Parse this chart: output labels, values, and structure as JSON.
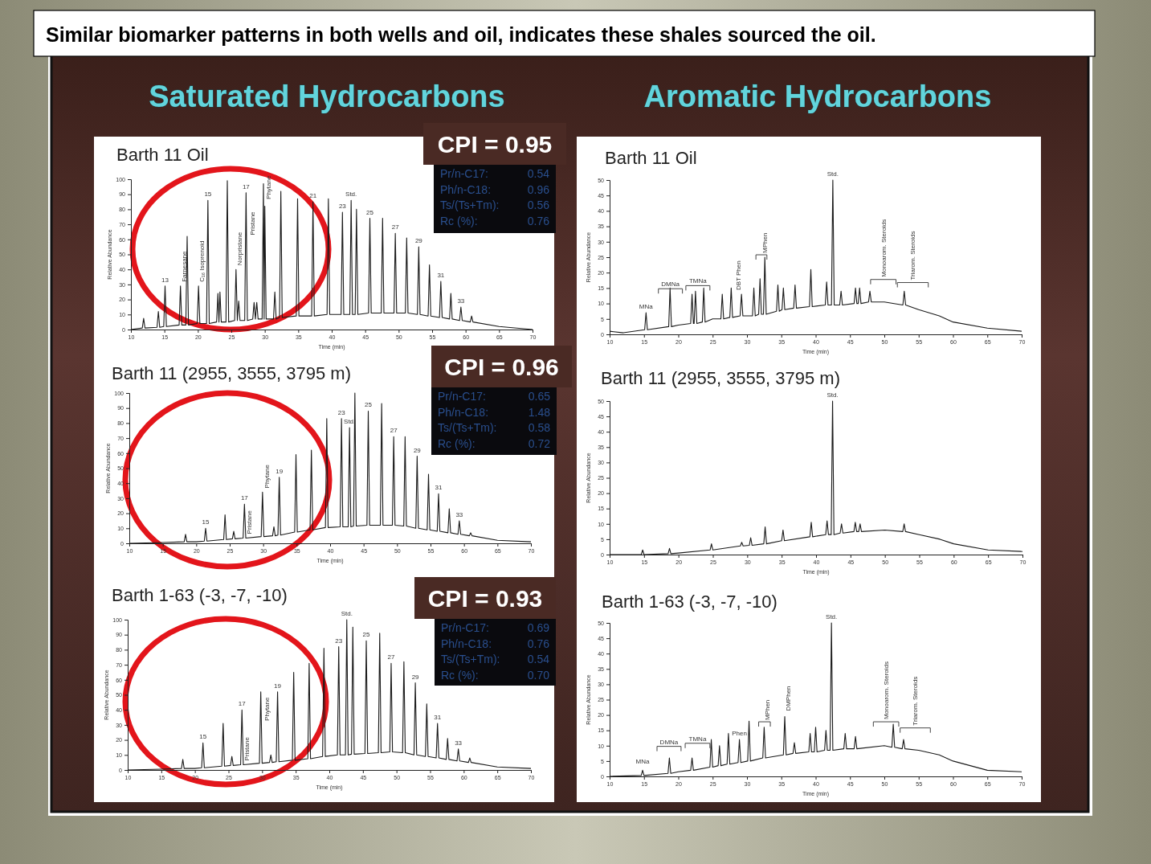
{
  "chart_data": [
    {
      "type": "other",
      "title": "Similar biomarker patterns in both wells and oil, indicates these shales sourced the oil.",
      "annotations": [
        "Saturated Hydrocarbons",
        "Aromatic Hydrocarbons"
      ]
    },
    {
      "type": "line",
      "title": "Barth 11 Oil",
      "xlabel": "Time (min)",
      "ylabel": "Relative Abundance",
      "xlim": [
        10,
        70
      ],
      "ylim": [
        0,
        100
      ],
      "xticks": [
        10,
        15,
        20,
        25,
        30,
        35,
        40,
        45,
        50,
        55,
        60,
        65,
        70
      ],
      "yticks": [
        0,
        10,
        20,
        30,
        40,
        50,
        60,
        70,
        80,
        90,
        100
      ],
      "series": [
        {
          "color": "#1a1a1a",
          "x": [
            10,
            11.7,
            11.9,
            12.1,
            13.9,
            14.1,
            14.3,
            14.9,
            15.1,
            15.3,
            17.2,
            17.4,
            17.6,
            18.2,
            18.4,
            18.6,
            19.9,
            20.1,
            20.3,
            21.3,
            21.5,
            21.7,
            22.8,
            23.0,
            23.15,
            23.3,
            23.5,
            24.2,
            24.4,
            24.6,
            25.5,
            25.7,
            25.9,
            26.1,
            26.3,
            27.0,
            27.2,
            27.4,
            28.2,
            28.4,
            28.6,
            28.8,
            29.0,
            29.6,
            29.8,
            29.9,
            30.0,
            30.2,
            31.3,
            31.5,
            31.7,
            32.2,
            32.4,
            32.6,
            34.7,
            34.9,
            35.1,
            37.0,
            37.2,
            37.4,
            39.3,
            39.5,
            39.7,
            41.4,
            41.6,
            41.8,
            42.7,
            42.9,
            43.1,
            43.5,
            43.7,
            43.9,
            45.5,
            45.7,
            45.9,
            47.4,
            47.6,
            47.8,
            49.3,
            49.5,
            49.7,
            51.0,
            51.2,
            51.4,
            52.8,
            53.0,
            53.2,
            54.4,
            54.6,
            54.8,
            56.1,
            56.3,
            56.5,
            57.6,
            57.8,
            58.0,
            59.1,
            59.3,
            59.5,
            60.7,
            60.9,
            61.1,
            65,
            70
          ],
          "values": [
            0,
            1,
            7.5,
            1,
            1.5,
            12,
            1.5,
            2,
            29,
            2,
            3,
            29,
            3,
            3,
            62,
            3,
            4,
            29,
            4,
            4,
            86,
            4,
            5,
            24,
            5,
            25,
            5,
            5,
            99,
            5,
            6,
            40,
            6,
            19,
            6,
            6,
            91,
            6,
            7,
            18,
            7,
            18,
            7,
            7,
            97,
            7,
            82,
            7,
            7,
            25,
            7,
            8,
            92,
            8,
            9,
            87,
            9,
            9,
            85,
            9,
            10,
            87,
            10,
            10,
            78,
            10,
            10,
            86,
            10,
            10,
            80,
            10,
            11,
            74,
            11,
            11,
            74,
            11,
            11,
            64,
            11,
            11,
            61,
            11,
            10,
            55,
            10,
            9,
            43,
            9,
            8,
            32,
            8,
            7,
            24,
            7,
            6,
            15,
            6,
            5,
            9,
            5,
            2,
            0
          ]
        }
      ],
      "annotations": [
        {
          "text": "13",
          "x": 15.1,
          "y": 29
        },
        {
          "text": "Farnesane",
          "x": 17.4,
          "y": 29
        },
        {
          "text": "C₁₆ Isoprenoid",
          "x": 20.1,
          "y": 29
        },
        {
          "text": "15",
          "x": 21.5,
          "y": 86
        },
        {
          "text": "Norpristane",
          "x": 25.7,
          "y": 40
        },
        {
          "text": "17",
          "x": 27.2,
          "y": 91
        },
        {
          "text": "Pristane",
          "x": 27.6,
          "y": 60
        },
        {
          "text": "Phytane",
          "x": 30.0,
          "y": 84
        },
        {
          "text": "21",
          "x": 37.2,
          "y": 85
        },
        {
          "text": "23",
          "x": 41.6,
          "y": 78
        },
        {
          "text": "Std.",
          "x": 42.9,
          "y": 86
        },
        {
          "text": "25",
          "x": 45.7,
          "y": 74
        },
        {
          "text": "27",
          "x": 49.5,
          "y": 64
        },
        {
          "text": "29",
          "x": 53.0,
          "y": 55
        },
        {
          "text": "31",
          "x": 56.3,
          "y": 32
        },
        {
          "text": "33",
          "x": 59.3,
          "y": 15
        },
        "CPI = 0.95",
        "Pr/n-C17: 0.54",
        "Ph/n-C18: 0.96",
        "Ts/(Ts+Tm): 0.56",
        "Rc (%): 0.76"
      ]
    },
    {
      "type": "line",
      "title": "Barth 11 Oil",
      "xlabel": "Time (min)",
      "ylabel": "Relative Abundance",
      "xlim": [
        10,
        70
      ],
      "ylim": [
        0,
        50
      ],
      "xticks": [
        10,
        15,
        20,
        25,
        30,
        35,
        40,
        45,
        50,
        55,
        60,
        65,
        70
      ],
      "yticks": [
        0,
        5,
        10,
        15,
        20,
        25,
        30,
        35,
        40,
        45,
        50
      ],
      "series": [
        {
          "color": "#1a1a1a",
          "x": [
            10,
            12,
            15.1,
            15.3,
            15.5,
            18.6,
            18.8,
            19.0,
            20,
            21.8,
            22.0,
            22.2,
            22.3,
            22.5,
            22.7,
            23.5,
            23.7,
            23.9,
            25,
            26.2,
            26.4,
            26.6,
            27.5,
            27.7,
            27.9,
            29.0,
            29.2,
            29.4,
            30.8,
            31.0,
            31.2,
            31.7,
            31.9,
            32.1,
            32.4,
            32.6,
            32.8,
            34.3,
            34.5,
            34.7,
            35.1,
            35.3,
            35.5,
            36.8,
            37.0,
            37.2,
            39.1,
            39.3,
            39.5,
            41.4,
            41.6,
            41.8,
            42.3,
            42.5,
            42.7,
            43.5,
            43.7,
            43.9,
            45.6,
            45.8,
            46.0,
            46.2,
            46.4,
            46.6,
            47.7,
            47.9,
            48.1,
            50,
            52.7,
            52.9,
            53.1,
            55,
            58,
            60,
            65,
            70
          ],
          "values": [
            1,
            0.5,
            1.5,
            7,
            1.5,
            2.5,
            15,
            2.5,
            3,
            3.5,
            13,
            3.5,
            3.5,
            14,
            3.5,
            4,
            15,
            4,
            5,
            5,
            13,
            5,
            5.5,
            15,
            5.5,
            6,
            13,
            6,
            6,
            15,
            6,
            6.5,
            18,
            6.5,
            6.5,
            25,
            6.5,
            7.5,
            16,
            7.5,
            8,
            15,
            8,
            8.5,
            16,
            8.5,
            9,
            21,
            9,
            9.5,
            17,
            9.5,
            9.5,
            50,
            9.5,
            9.5,
            14,
            9.5,
            10,
            15,
            10,
            10,
            15,
            10,
            10.5,
            14,
            10.5,
            10.5,
            9.5,
            14,
            9.5,
            8,
            6,
            4,
            2,
            1
          ]
        }
      ],
      "annotations": [
        {
          "text": "MNa",
          "x": 15.3,
          "y": 7
        },
        {
          "text": "DBT Phen",
          "x": 28.2,
          "y": 13
        },
        {
          "text": "MPhen",
          "x": 32.1,
          "y": 25
        },
        {
          "text": "Std.",
          "x": 42.5,
          "y": 50
        },
        "DMNa",
        "TMNa",
        "Monoarom. Steroids",
        "Triarom. Steroids"
      ]
    },
    {
      "type": "line",
      "title": "Barth 11 (2955, 3555, 3795 m)",
      "xlabel": "Time (min)",
      "ylabel": "Relative Abundance",
      "xlim": [
        10,
        70
      ],
      "ylim": [
        0,
        100
      ],
      "xticks": [
        10,
        15,
        20,
        25,
        30,
        35,
        40,
        45,
        50,
        55,
        60,
        65,
        70
      ],
      "yticks": [
        0,
        10,
        20,
        30,
        40,
        50,
        60,
        70,
        80,
        90,
        100
      ],
      "series": [
        {
          "color": "#1a1a1a",
          "x": [
            10,
            15,
            18.2,
            18.4,
            18.6,
            20,
            21.2,
            21.4,
            21.6,
            24.1,
            24.3,
            24.5,
            25.4,
            25.6,
            25.8,
            27.0,
            27.2,
            27.4,
            29.7,
            29.9,
            30.1,
            31.4,
            31.6,
            31.8,
            32.2,
            32.4,
            32.6,
            34.7,
            34.9,
            35.1,
            37.0,
            37.2,
            37.4,
            39.3,
            39.5,
            39.7,
            41.5,
            41.7,
            41.9,
            42.7,
            42.9,
            43.1,
            43.5,
            43.7,
            43.9,
            45.5,
            45.7,
            45.9,
            47.5,
            47.7,
            47.9,
            49.3,
            49.5,
            49.7,
            51.0,
            51.2,
            51.4,
            52.8,
            53.0,
            53.2,
            54.5,
            54.7,
            54.9,
            56.0,
            56.2,
            56.4,
            57.6,
            57.8,
            58.0,
            59.1,
            59.3,
            59.5,
            60.8,
            61.0,
            61.2,
            65,
            70
          ],
          "values": [
            0,
            0.5,
            1,
            6,
            1,
            1,
            1.5,
            10,
            1.5,
            2.5,
            19,
            2.5,
            3,
            8,
            3,
            3.5,
            26,
            3.5,
            4.5,
            34,
            4.5,
            5,
            11,
            5,
            5.5,
            44,
            5.5,
            7.5,
            59,
            7.5,
            9,
            62,
            9,
            10.5,
            83,
            10.5,
            11,
            83,
            11,
            11,
            77,
            11,
            11.5,
            100,
            11.5,
            12,
            88,
            12,
            12,
            93,
            12,
            12,
            71,
            12,
            11.5,
            71,
            11.5,
            10,
            58,
            10,
            9,
            46,
            9,
            8,
            33,
            8,
            7,
            23,
            7,
            6,
            15,
            6,
            5,
            7,
            5,
            2,
            1
          ]
        }
      ],
      "annotations": [
        {
          "text": "15",
          "x": 21.4,
          "y": 10
        },
        {
          "text": "17",
          "x": 27.2,
          "y": 26
        },
        {
          "text": "Pristane",
          "x": 27.4,
          "y": 3.5
        },
        {
          "text": "Phytane",
          "x": 30.0,
          "y": 34
        },
        {
          "text": "19",
          "x": 32.4,
          "y": 44
        },
        {
          "text": "23",
          "x": 41.7,
          "y": 83
        },
        {
          "text": "Std.",
          "x": 42.9,
          "y": 77
        },
        {
          "text": "25",
          "x": 45.7,
          "y": 88
        },
        {
          "text": "27",
          "x": 49.5,
          "y": 71
        },
        {
          "text": "29",
          "x": 53.0,
          "y": 58
        },
        {
          "text": "31",
          "x": 56.2,
          "y": 33
        },
        {
          "text": "33",
          "x": 59.3,
          "y": 15
        },
        "CPI = 0.96",
        "Pr/n-C17: 0.65",
        "Ph/n-C18: 1.48",
        "Ts/(Ts+Tm): 0.58",
        "Rc (%): 0.72"
      ]
    },
    {
      "type": "line",
      "title": "Barth 11 (2955, 3555, 3795 m)",
      "xlabel": "Time (min)",
      "ylabel": "Relative Abundance",
      "xlim": [
        10,
        70
      ],
      "ylim": [
        0,
        50
      ],
      "xticks": [
        10,
        15,
        20,
        25,
        30,
        35,
        40,
        45,
        50,
        55,
        60,
        65,
        70
      ],
      "yticks": [
        0,
        5,
        10,
        15,
        20,
        25,
        30,
        35,
        40,
        45,
        50
      ],
      "series": [
        {
          "color": "#1a1a1a",
          "x": [
            10,
            14.6,
            14.8,
            15.0,
            18.5,
            18.7,
            18.9,
            20,
            24.6,
            24.8,
            25.0,
            29.0,
            29.2,
            29.4,
            30.3,
            30.5,
            30.7,
            32.4,
            32.6,
            32.8,
            35,
            35.2,
            35.4,
            39.1,
            39.3,
            39.5,
            41.4,
            41.6,
            41.8,
            42.2,
            42.4,
            42.6,
            43.5,
            43.7,
            43.9,
            45.5,
            45.7,
            45.9,
            46.2,
            46.4,
            46.6,
            50,
            52.6,
            52.8,
            53.0,
            55,
            58,
            60,
            65,
            70
          ],
          "values": [
            0,
            0,
            1.5,
            0,
            0.3,
            2,
            0.3,
            0.5,
            1.5,
            3.5,
            1.5,
            2.8,
            4,
            2.8,
            3,
            5.5,
            3,
            3.5,
            9,
            3.5,
            4.5,
            8,
            4.5,
            5.8,
            10.5,
            5.8,
            6.5,
            11,
            6.5,
            6.5,
            50,
            6.5,
            7,
            10,
            7,
            7.5,
            10.5,
            7.5,
            7.5,
            10,
            7.5,
            8,
            7.5,
            10,
            7.5,
            6.5,
            5,
            3.5,
            1.5,
            1
          ]
        }
      ],
      "annotations": [
        {
          "text": "Std.",
          "x": 42.4,
          "y": 50
        }
      ]
    },
    {
      "type": "line",
      "title": "Barth 1-63 (-3, -7, -10)",
      "xlabel": "Time (min)",
      "ylabel": "Relative Abundance",
      "xlim": [
        10,
        70
      ],
      "ylim": [
        0,
        100
      ],
      "xticks": [
        10,
        15,
        20,
        25,
        30,
        35,
        40,
        45,
        50,
        55,
        60,
        65,
        70
      ],
      "yticks": [
        0,
        10,
        20,
        30,
        40,
        50,
        60,
        70,
        80,
        90,
        100
      ],
      "series": [
        {
          "color": "#1a1a1a",
          "x": [
            10,
            15,
            18.0,
            18.2,
            18.4,
            20,
            21.0,
            21.2,
            21.4,
            24.0,
            24.2,
            24.4,
            25.3,
            25.5,
            25.7,
            26.8,
            27.0,
            27.2,
            29.6,
            29.8,
            30.0,
            31.1,
            31.3,
            31.5,
            32.1,
            32.3,
            32.5,
            34.5,
            34.7,
            34.9,
            36.8,
            37.0,
            37.2,
            39.0,
            39.2,
            39.4,
            41.2,
            41.4,
            41.6,
            42.4,
            42.6,
            42.8,
            43.3,
            43.5,
            43.7,
            45.3,
            45.5,
            45.7,
            47.3,
            47.5,
            47.7,
            49.0,
            49.2,
            49.4,
            50.9,
            51.1,
            51.3,
            52.6,
            52.8,
            53.0,
            54.3,
            54.5,
            54.7,
            55.9,
            56.1,
            56.3,
            57.4,
            57.6,
            57.8,
            59.0,
            59.2,
            59.4,
            60.7,
            60.9,
            61.1,
            65,
            70
          ],
          "values": [
            0,
            0.5,
            1,
            7,
            1,
            1,
            1.5,
            18,
            1.5,
            2.5,
            31,
            2.5,
            3,
            9,
            3,
            3.5,
            40,
            3.5,
            4.5,
            52,
            4.5,
            5,
            10,
            5,
            5.5,
            52,
            5.5,
            6.5,
            65,
            6.5,
            7.5,
            71,
            7.5,
            9,
            81,
            9,
            10,
            82,
            10,
            10,
            100,
            10,
            10.5,
            95,
            10.5,
            11,
            86,
            11,
            11.5,
            91,
            11.5,
            12,
            71,
            12,
            11.5,
            72,
            11.5,
            10,
            58,
            10,
            9,
            44,
            9,
            8,
            31,
            8,
            7,
            21,
            7,
            6,
            14,
            6,
            5,
            8,
            5,
            2,
            1
          ]
        }
      ],
      "annotations": [
        {
          "text": "15",
          "x": 21.2,
          "y": 18
        },
        {
          "text": "17",
          "x": 27.0,
          "y": 40
        },
        {
          "text": "Pristane",
          "x": 27.2,
          "y": 3.5
        },
        {
          "text": "Phytane",
          "x": 30.2,
          "y": 30
        },
        {
          "text": "19",
          "x": 32.3,
          "y": 52
        },
        {
          "text": "23",
          "x": 41.4,
          "y": 82
        },
        {
          "text": "Std.",
          "x": 42.6,
          "y": 100
        },
        {
          "text": "25",
          "x": 45.5,
          "y": 86
        },
        {
          "text": "27",
          "x": 49.2,
          "y": 71
        },
        {
          "text": "29",
          "x": 52.8,
          "y": 58
        },
        {
          "text": "31",
          "x": 56.1,
          "y": 31
        },
        {
          "text": "33",
          "x": 59.2,
          "y": 14
        },
        "CPI = 0.93",
        "Pr/n-C17: 0.69",
        "Ph/n-C18: 0.76",
        "Ts/(Ts+Tm): 0.54",
        "Rc (%): 0.70"
      ]
    },
    {
      "type": "line",
      "title": "Barth 1-63 (-3, -7, -10)",
      "xlabel": "Time (min)",
      "ylabel": "Relative Abundance",
      "xlim": [
        10,
        70
      ],
      "ylim": [
        0,
        50
      ],
      "xticks": [
        10,
        15,
        20,
        25,
        30,
        35,
        40,
        45,
        50,
        55,
        60,
        65,
        70
      ],
      "yticks": [
        0,
        5,
        10,
        15,
        20,
        25,
        30,
        35,
        40,
        45,
        50
      ],
      "series": [
        {
          "color": "#1a1a1a",
          "x": [
            10,
            14.6,
            14.8,
            15.0,
            18.5,
            18.7,
            18.9,
            20,
            21.8,
            22.0,
            22.2,
            24.6,
            24.8,
            25.0,
            25.8,
            26.0,
            26.2,
            27.1,
            27.3,
            27.5,
            28.7,
            28.9,
            29.1,
            30.1,
            30.3,
            30.5,
            32.3,
            32.5,
            32.7,
            35.3,
            35.5,
            35.7,
            36.7,
            36.9,
            37.1,
            39.0,
            39.2,
            39.4,
            39.8,
            40.0,
            40.2,
            41.3,
            41.5,
            41.7,
            42.1,
            42.3,
            42.5,
            44.1,
            44.3,
            44.5,
            45.6,
            45.8,
            46.0,
            50,
            51.1,
            51.3,
            51.5,
            52.6,
            52.8,
            53.0,
            55,
            58,
            60,
            65,
            70
          ],
          "values": [
            0,
            0.3,
            2,
            0.3,
            1,
            6,
            1,
            1.5,
            2,
            6,
            2,
            3,
            12,
            3,
            3.5,
            10,
            3.5,
            4,
            14,
            4,
            4.5,
            12,
            4.5,
            5,
            18,
            5,
            6,
            16,
            6,
            7,
            19.5,
            7,
            7.5,
            11,
            7.5,
            8,
            14,
            8,
            8,
            16,
            8,
            8.5,
            15,
            8.5,
            8.5,
            50,
            8.5,
            9,
            14,
            9,
            9,
            13,
            9,
            10,
            9.5,
            17,
            9.5,
            9,
            12,
            9,
            8.5,
            7,
            5,
            2,
            1.5
          ]
        }
      ],
      "annotations": [
        {
          "text": "MNa",
          "x": 14.8,
          "y": 3
        },
        {
          "text": "Phen",
          "x": 28.9,
          "y": 12
        },
        {
          "text": "MPhen",
          "x": 32.5,
          "y": 17
        },
        {
          "text": "DMPhen",
          "x": 35.5,
          "y": 20
        },
        {
          "text": "Std.",
          "x": 42.3,
          "y": 50
        },
        "DMNa",
        "TMNa",
        "Monoarom. Steroids",
        "Triarom. Steroids"
      ]
    }
  ]
}
